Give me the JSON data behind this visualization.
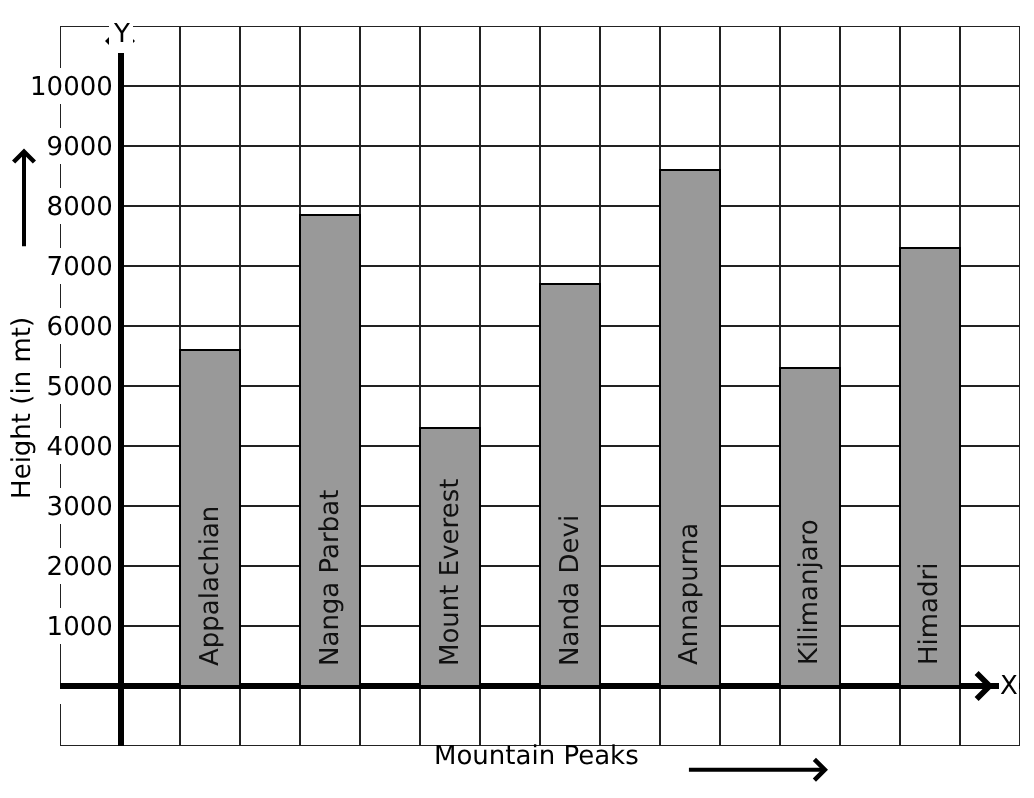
{
  "chart_data": {
    "type": "bar",
    "categories": [
      "Appalachian",
      "Nanga Parbat",
      "Mount Everest",
      "Nanda Devi",
      "Annapurna",
      "Kilimanjaro",
      "Himadri"
    ],
    "values": [
      5600,
      7850,
      4300,
      6700,
      8600,
      5300,
      7300
    ],
    "color": "#999999",
    "xlabel": "Mountain Peaks",
    "ylabel": "Height (in mt)",
    "annotations": [
      "Y",
      "X"
    ],
    "ylim": [
      -1000,
      11000
    ],
    "yticks": [
      1000,
      2000,
      3000,
      4000,
      5000,
      6000,
      7000,
      8000,
      9000,
      10000
    ],
    "grid": true
  }
}
